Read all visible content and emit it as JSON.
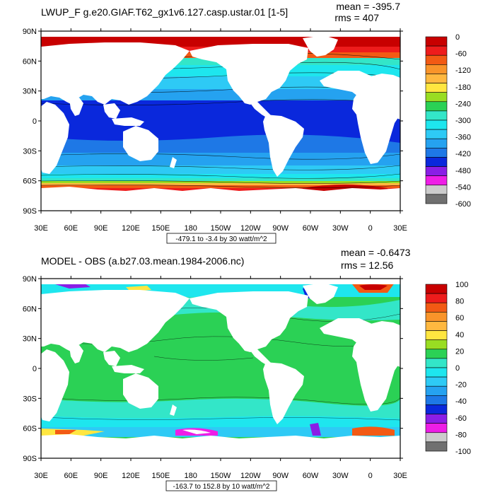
{
  "panels": [
    {
      "id": "top",
      "title": "LWUP_F g.e20.GIAF.T62_gx1v6.127.casp.ustar.01 [1-5]",
      "mean_label": "mean = -395.7",
      "rms_label": "rms = 407",
      "range_label": "-479.1 to -3.4 by 30 watt/m^2",
      "lat_ticks": [
        "90N",
        "60N",
        "30N",
        "0",
        "30S",
        "60S",
        "90S"
      ],
      "lon_ticks": [
        "30E",
        "60E",
        "90E",
        "120E",
        "150E",
        "180",
        "150W",
        "120W",
        "90W",
        "60W",
        "30W",
        "0",
        "30E"
      ],
      "colorbar": {
        "labels": [
          "0",
          "-60",
          "-120",
          "-180",
          "-240",
          "-300",
          "-360",
          "-420",
          "-480",
          "-540",
          "-600"
        ],
        "colors": [
          "#c80000",
          "#ee1c1c",
          "#f25a14",
          "#f9942a",
          "#ffb840",
          "#ffe640",
          "#99dd22",
          "#2bd155",
          "#33e6c8",
          "#1ee6ee",
          "#2ecaf5",
          "#25a2f0",
          "#1e78e6",
          "#0a28dc",
          "#8a1ee6",
          "#ee1ee6",
          "#cccccc",
          "#707070"
        ]
      }
    },
    {
      "id": "bottom",
      "title": "MODEL - OBS (a.b27.03.mean.1984-2006.nc)",
      "mean_label": "mean = -0.6473",
      "rms_label": "rms = 12.56",
      "range_label": "-163.7 to 152.8 by 10 watt/m^2",
      "lat_ticks": [
        "90N",
        "60N",
        "30N",
        "0",
        "30S",
        "60S",
        "90S"
      ],
      "lon_ticks": [
        "30E",
        "60E",
        "90E",
        "120E",
        "150E",
        "180",
        "150W",
        "120W",
        "90W",
        "60W",
        "30W",
        "0",
        "30E"
      ],
      "colorbar": {
        "labels": [
          "100",
          "80",
          "60",
          "40",
          "20",
          "0",
          "-20",
          "-40",
          "-60",
          "-80",
          "-100"
        ],
        "colors": [
          "#c80000",
          "#ee1c1c",
          "#f25a14",
          "#f9942a",
          "#ffb840",
          "#ffe640",
          "#99dd22",
          "#2bd155",
          "#33e6c8",
          "#1ee6ee",
          "#2ecaf5",
          "#25a2f0",
          "#1e78e6",
          "#0a28dc",
          "#8a1ee6",
          "#ee1ee6",
          "#cccccc",
          "#707070"
        ]
      }
    }
  ]
}
